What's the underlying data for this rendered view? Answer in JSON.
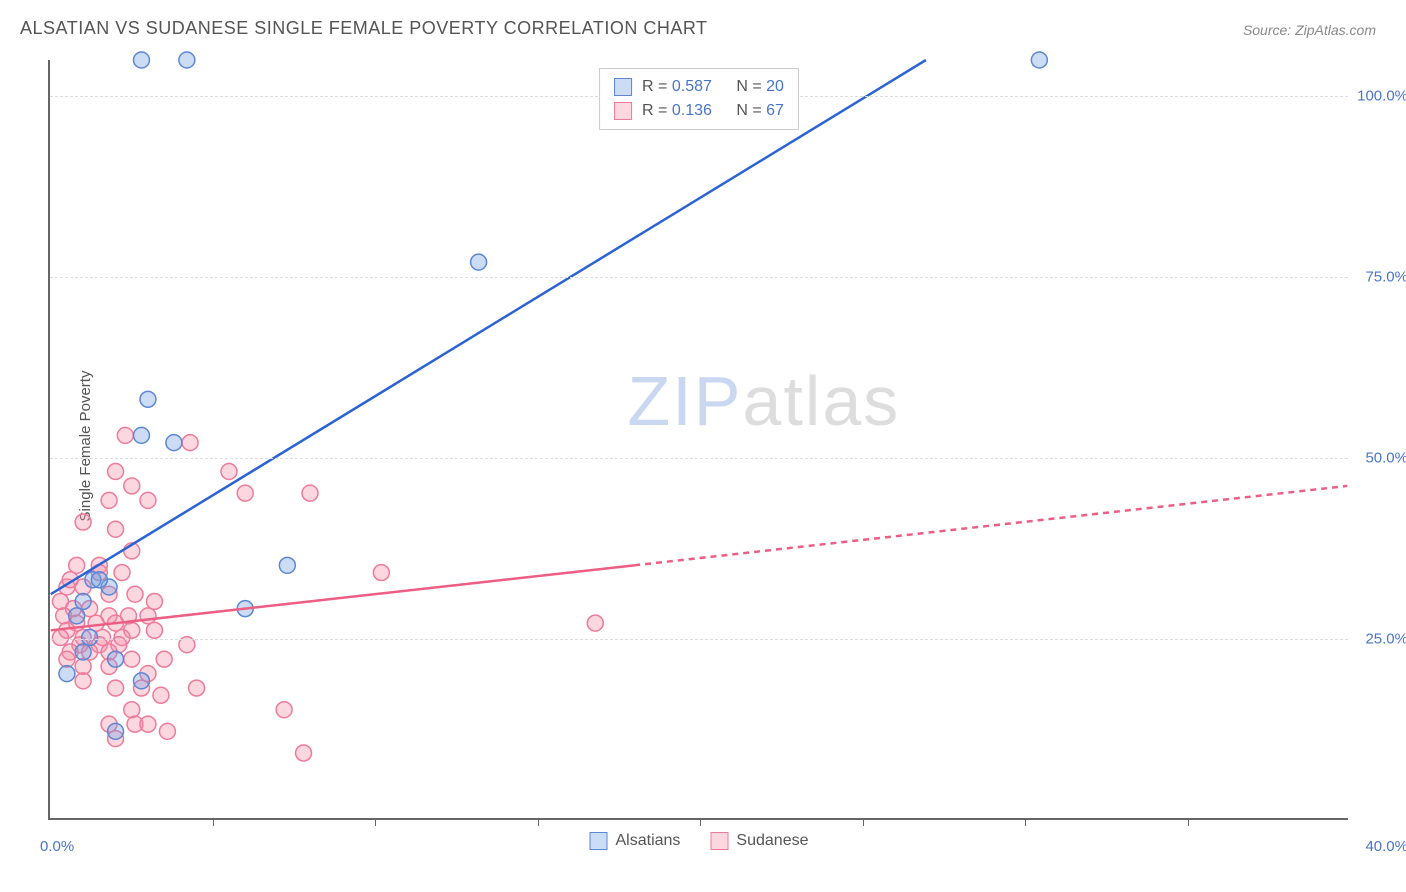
{
  "title": "ALSATIAN VS SUDANESE SINGLE FEMALE POVERTY CORRELATION CHART",
  "source": "Source: ZipAtlas.com",
  "ylabel": "Single Female Poverty",
  "watermark_a": "ZIP",
  "watermark_b": "atlas",
  "chart": {
    "type": "scatter+regression",
    "xlim": [
      0,
      40
    ],
    "ylim": [
      0,
      105
    ],
    "xtick_step": 5,
    "ytick_labels": [
      "25.0%",
      "50.0%",
      "75.0%",
      "100.0%"
    ],
    "ytick_values": [
      25,
      50,
      75,
      100
    ],
    "xmin_label": "0.0%",
    "xmax_label": "40.0%",
    "background": "#ffffff",
    "grid_color": "#dddddd",
    "axis_color": "#666666",
    "label_color": "#4a74c9",
    "text_color": "#555555"
  },
  "series": {
    "alsatians": {
      "label": "Alsatians",
      "color_fill": "rgba(110,155,225,0.35)",
      "color_stroke": "#5b87d6",
      "line_color": "#2a63d4",
      "r": "0.587",
      "n": "20",
      "reg_line": {
        "x1": 0,
        "y1": 31,
        "x2": 27,
        "y2": 105,
        "dash_from": null
      },
      "points": [
        [
          2.8,
          105
        ],
        [
          4.2,
          105
        ],
        [
          30.5,
          105
        ],
        [
          13.2,
          77
        ],
        [
          3.0,
          58
        ],
        [
          2.8,
          53
        ],
        [
          3.8,
          52
        ],
        [
          1.3,
          33
        ],
        [
          1.8,
          32
        ],
        [
          7.3,
          35
        ],
        [
          6.0,
          29
        ],
        [
          1.0,
          30
        ],
        [
          0.8,
          28
        ],
        [
          1.0,
          23
        ],
        [
          2.0,
          22
        ],
        [
          2.8,
          19
        ],
        [
          0.5,
          20
        ],
        [
          2.0,
          12
        ],
        [
          1.5,
          33
        ],
        [
          1.2,
          25
        ]
      ]
    },
    "sudanese": {
      "label": "Sudanese",
      "color_fill": "rgba(245,140,165,0.35)",
      "color_stroke": "#ef7a9a",
      "line_color": "#ec5e84",
      "r": "0.136",
      "n": "67",
      "reg_line": {
        "x1": 0,
        "y1": 26,
        "x2": 40,
        "y2": 46,
        "dash_from": 18
      },
      "points": [
        [
          2.3,
          53
        ],
        [
          4.3,
          52
        ],
        [
          5.5,
          48
        ],
        [
          2.0,
          48
        ],
        [
          2.5,
          46
        ],
        [
          1.8,
          44
        ],
        [
          3.0,
          44
        ],
        [
          6.0,
          45
        ],
        [
          8.0,
          45
        ],
        [
          1.0,
          41
        ],
        [
          2.0,
          40
        ],
        [
          2.5,
          37
        ],
        [
          0.8,
          35
        ],
        [
          1.5,
          35
        ],
        [
          2.2,
          34
        ],
        [
          10.2,
          34
        ],
        [
          0.5,
          32
        ],
        [
          1.0,
          32
        ],
        [
          1.8,
          31
        ],
        [
          2.6,
          31
        ],
        [
          3.2,
          30
        ],
        [
          0.3,
          30
        ],
        [
          0.7,
          29
        ],
        [
          1.2,
          29
        ],
        [
          1.8,
          28
        ],
        [
          2.4,
          28
        ],
        [
          3.0,
          28
        ],
        [
          0.4,
          28
        ],
        [
          0.8,
          27
        ],
        [
          1.4,
          27
        ],
        [
          2.0,
          27
        ],
        [
          2.5,
          26
        ],
        [
          3.2,
          26
        ],
        [
          0.5,
          26
        ],
        [
          1.0,
          25
        ],
        [
          1.6,
          25
        ],
        [
          2.2,
          25
        ],
        [
          16.8,
          27
        ],
        [
          0.3,
          25
        ],
        [
          0.9,
          24
        ],
        [
          1.5,
          24
        ],
        [
          2.1,
          24
        ],
        [
          4.2,
          24
        ],
        [
          0.6,
          23
        ],
        [
          1.2,
          23
        ],
        [
          1.8,
          23
        ],
        [
          2.5,
          22
        ],
        [
          3.5,
          22
        ],
        [
          0.5,
          22
        ],
        [
          1.0,
          21
        ],
        [
          1.8,
          21
        ],
        [
          3.0,
          20
        ],
        [
          1.0,
          19
        ],
        [
          2.0,
          18
        ],
        [
          2.8,
          18
        ],
        [
          3.4,
          17
        ],
        [
          4.5,
          18
        ],
        [
          2.5,
          15
        ],
        [
          7.2,
          15
        ],
        [
          1.8,
          13
        ],
        [
          2.6,
          13
        ],
        [
          3.0,
          13
        ],
        [
          3.6,
          12
        ],
        [
          2.0,
          11
        ],
        [
          7.8,
          9
        ],
        [
          1.5,
          34
        ],
        [
          0.6,
          33
        ]
      ]
    }
  },
  "legend_top": {
    "r_prefix": "R = ",
    "n_prefix": "N = "
  }
}
